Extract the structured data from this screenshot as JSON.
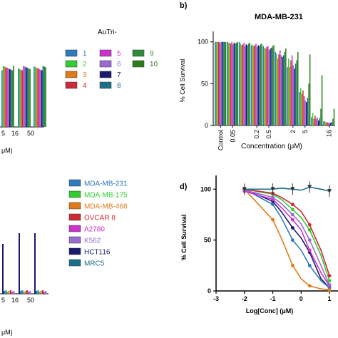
{
  "panel_b": {
    "letter": "b)",
    "title": "MDA-MB-231"
  },
  "panel_d": {
    "letter": "d)"
  },
  "autri_legend": {
    "title": "AuTri-",
    "items": [
      {
        "label": "1",
        "color": "#2e7bbf"
      },
      {
        "label": "2",
        "color": "#33cc33"
      },
      {
        "label": "3",
        "color": "#e07b1a"
      },
      {
        "label": "4",
        "color": "#cc2a36"
      },
      {
        "label": "5",
        "color": "#cc33cc"
      },
      {
        "label": "6",
        "color": "#9a6bd0"
      },
      {
        "label": "7",
        "color": "#1a1a6e"
      },
      {
        "label": "8",
        "color": "#1b6f8a"
      },
      {
        "label": "9",
        "color": "#2e8b3e"
      },
      {
        "label": "10",
        "color": "#2a7d1a"
      }
    ]
  },
  "cell_legend": {
    "items": [
      {
        "label": "MDA-MB-231",
        "color": "#2e7bbf"
      },
      {
        "label": "MDA-MB-175",
        "color": "#33cc33"
      },
      {
        "label": "MDA-MB-468",
        "color": "#e07b1a"
      },
      {
        "label": "OVCAR 8",
        "color": "#cc2a36"
      },
      {
        "label": "A2780",
        "color": "#cc33cc"
      },
      {
        "label": "K562",
        "color": "#9a6bd0"
      },
      {
        "label": "HCT116",
        "color": "#1a1a6e"
      },
      {
        "label": "MRC5",
        "color": "#1b6f8a"
      }
    ]
  },
  "partial_labels": {
    "a_ticks": [
      "5",
      "16",
      "50"
    ],
    "a_unit": "μM)",
    "c_ticks": [
      "5",
      "16",
      "50"
    ],
    "c_unit": "μM)"
  },
  "chart_data": [
    {
      "panel": "b",
      "type": "bar",
      "title": "MDA-MB-231",
      "xlabel": "Concentration (μM)",
      "ylabel": "% Cell Survival",
      "ylim": [
        0,
        110
      ],
      "yticks": [
        0,
        50,
        100
      ],
      "categories": [
        "Control",
        "0.05",
        "0.1",
        "0.2",
        "0.5",
        "1",
        "2",
        "5",
        "10",
        "16"
      ],
      "category_labels_shown": [
        "Control",
        "0.05",
        "0.2",
        "0.5",
        "2",
        "5",
        "16"
      ],
      "series": [
        {
          "name": "1",
          "values": [
            100,
            100,
            100,
            96,
            95,
            88,
            70,
            40,
            10,
            5
          ]
        },
        {
          "name": "2",
          "values": [
            100,
            99,
            98,
            97,
            93,
            86,
            80,
            45,
            15,
            5
          ]
        },
        {
          "name": "3",
          "values": [
            100,
            99,
            96,
            95,
            92,
            80,
            70,
            38,
            8,
            4
          ]
        },
        {
          "name": "4",
          "values": [
            100,
            98,
            97,
            96,
            94,
            85,
            78,
            42,
            12,
            4
          ]
        },
        {
          "name": "5",
          "values": [
            99,
            100,
            99,
            98,
            95,
            90,
            84,
            35,
            8,
            3
          ]
        },
        {
          "name": "6",
          "values": [
            100,
            97,
            95,
            94,
            90,
            84,
            72,
            30,
            10,
            4
          ]
        },
        {
          "name": "7",
          "values": [
            100,
            99,
            97,
            96,
            92,
            82,
            68,
            28,
            6,
            3
          ]
        },
        {
          "name": "8",
          "values": [
            100,
            98,
            96,
            95,
            93,
            84,
            74,
            33,
            9,
            4
          ]
        },
        {
          "name": "9",
          "values": [
            100,
            99,
            98,
            97,
            95,
            88,
            78,
            50,
            20,
            8
          ]
        },
        {
          "name": "10",
          "values": [
            100,
            100,
            99,
            98,
            96,
            92,
            88,
            85,
            60,
            20
          ]
        }
      ]
    },
    {
      "panel": "d",
      "type": "line",
      "xlabel": "Log[Conc] (μM)",
      "ylabel": "% Cell Survival",
      "xlim": [
        -3,
        1.3
      ],
      "ylim": [
        0,
        110
      ],
      "xticks": [
        -3,
        -2,
        -1,
        0,
        1
      ],
      "yticks": [
        0,
        50,
        100
      ],
      "x": [
        -2,
        -1,
        -0.7,
        -0.3,
        0,
        0.3,
        0.7,
        1
      ],
      "series": [
        {
          "name": "MDA-MB-231",
          "values": [
            100,
            85,
            72,
            50,
            40,
            25,
            10,
            3
          ]
        },
        {
          "name": "MDA-MB-175",
          "values": [
            100,
            95,
            90,
            80,
            72,
            60,
            35,
            10
          ]
        },
        {
          "name": "MDA-MB-468",
          "values": [
            100,
            70,
            52,
            25,
            12,
            5,
            2,
            1
          ]
        },
        {
          "name": "OVCAR 8",
          "values": [
            100,
            96,
            92,
            85,
            78,
            65,
            40,
            15
          ]
        },
        {
          "name": "A2780",
          "values": [
            98,
            90,
            82,
            70,
            60,
            40,
            18,
            5
          ]
        },
        {
          "name": "K562",
          "values": [
            99,
            92,
            86,
            75,
            66,
            50,
            25,
            6
          ]
        },
        {
          "name": "HCT116",
          "values": [
            100,
            88,
            78,
            62,
            52,
            38,
            12,
            3
          ]
        },
        {
          "name": "MRC5",
          "values": [
            100,
            100,
            101,
            100,
            99,
            102,
            100,
            98
          ]
        }
      ]
    }
  ]
}
